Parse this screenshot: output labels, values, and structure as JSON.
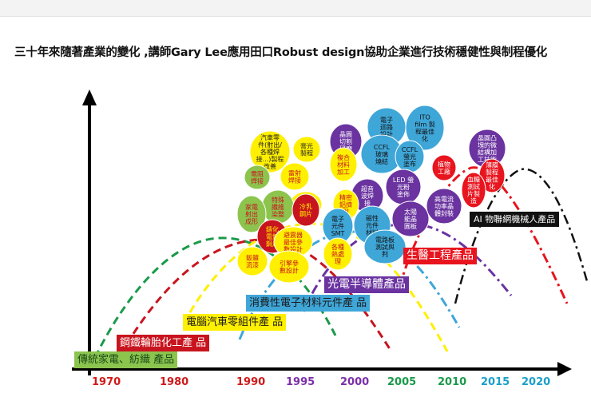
{
  "title": "三十年來隨著產業的變化 ,講師Gary Lee應用田口Robust design協助企業進行技術穩健性與制程優化",
  "years": [
    {
      "label": "1970",
      "color": "#d01a1a"
    },
    {
      "label": "1980",
      "color": "#d01a1a"
    },
    {
      "label": "1990",
      "color": "#d01a1a"
    },
    {
      "label": "1995",
      "color": "#7b2fa8"
    },
    {
      "label": "2000",
      "color": "#7b2fa8"
    },
    {
      "label": "2005",
      "color": "#1a9a4a"
    },
    {
      "label": "2010",
      "color": "#1a9a4a"
    },
    {
      "label": "2015",
      "color": "#1aa0c8"
    },
    {
      "label": "2020",
      "color": "#1aa0c8"
    }
  ],
  "industries": [
    {
      "label": "傳統家電、紡織 產品",
      "bg": "#8cc44e",
      "fg": "#1a4a1a"
    },
    {
      "label": "鋼鐵輪胎化工產 品",
      "bg": "#c8141e",
      "fg": "#ffffff"
    },
    {
      "label": "電腦汽車零組件產 品",
      "bg": "#ffef00",
      "fg": "#1a1a1a"
    },
    {
      "label": "消費性電子材料元件產 品",
      "bg": "#3fa6d8",
      "fg": "#1a1a1a"
    },
    {
      "label": "光電半導體產品",
      "bg": "#6a33a0",
      "fg": "#ffffff"
    },
    {
      "label": "生醫工程產品",
      "bg": "#e8141e",
      "fg": "#ffffff"
    },
    {
      "label": "AI 物聯網機械人產品",
      "bg": "#111111",
      "fg": "#ffffff"
    }
  ],
  "bubbles": [
    {
      "lines": [
        "汽車零",
        "件(射出/",
        "各種焊",
        "接...)製程",
        "改善"
      ],
      "fill": "#ffef00",
      "color": "#222"
    },
    {
      "lines": [
        "膏光",
        "製程"
      ],
      "fill": "#ffef00",
      "color": "#222"
    },
    {
      "lines": [
        "晶圓",
        "切割",
        "研磨"
      ],
      "fill": "#6a33a0",
      "color": "#fff"
    },
    {
      "lines": [
        "電子",
        "迴路",
        "設計"
      ],
      "fill": "#3fa6d8",
      "color": "#111"
    },
    {
      "lines": [
        "ITO",
        "film 製",
        "程最佳",
        "化"
      ],
      "fill": "#3fa6d8",
      "color": "#111"
    },
    {
      "lines": [
        "晶圓凸",
        "塊的微",
        "結構加",
        "工技術"
      ],
      "fill": "#6a33a0",
      "color": "#fff"
    },
    {
      "lines": [
        "電阻",
        "焊接"
      ],
      "fill": "#8cc44e",
      "color": "#c8141e"
    },
    {
      "lines": [
        "雷射",
        "焊接"
      ],
      "fill": "#ffef00",
      "color": "#c8141e"
    },
    {
      "lines": [
        "複合",
        "材料",
        "加工"
      ],
      "fill": "#ffef00",
      "color": "#c8141e"
    },
    {
      "lines": [
        "CCFL",
        "玻璃",
        "燒結"
      ],
      "fill": "#3fa6d8",
      "color": "#111"
    },
    {
      "lines": [
        "CCFL",
        "螢光",
        "塗布"
      ],
      "fill": "#3fa6d8",
      "color": "#111"
    },
    {
      "lines": [
        "植物",
        "工廠"
      ],
      "fill": "#e8141e",
      "color": "#fff"
    },
    {
      "lines": [
        "薄膜",
        "製程",
        "最佳",
        "化"
      ],
      "fill": "#e8141e",
      "color": "#fff"
    },
    {
      "lines": [
        "精密",
        "鑄造"
      ],
      "fill": "#ffef00",
      "color": "#c8141e"
    },
    {
      "lines": [
        "超音",
        "波焊",
        "接"
      ],
      "fill": "#6a33a0",
      "color": "#fff"
    },
    {
      "lines": [
        "LED 螢",
        "光粉",
        "塗佈"
      ],
      "fill": "#6a33a0",
      "color": "#fff"
    },
    {
      "lines": [
        "血糖",
        "測試",
        "片製",
        "造"
      ],
      "fill": "#e8141e",
      "color": "#fff"
    },
    {
      "lines": [
        "特殊",
        "纖維",
        "染整"
      ],
      "fill": "#8cc44e",
      "color": "#c8141e"
    },
    {
      "lines": [
        "家電",
        "射出",
        "成形"
      ],
      "fill": "#8cc44e",
      "color": "#c8141e"
    },
    {
      "lines": [
        "冷乳",
        "鋼片"
      ],
      "fill": "#c8141e",
      "color": "#ffef00"
    },
    {
      "lines": [
        "精密",
        "鋁擠",
        "型"
      ],
      "fill": "#ffef00",
      "color": "#c8141e"
    },
    {
      "lines": [
        "電子",
        "元件",
        "SMT"
      ],
      "fill": "#3fa6d8",
      "color": "#111"
    },
    {
      "lines": [
        "磁性",
        "元件",
        "材料"
      ],
      "fill": "#3fa6d8",
      "color": "#111"
    },
    {
      "lines": [
        "太陽",
        "能晶",
        "圓板"
      ],
      "fill": "#6a33a0",
      "color": "#fff"
    },
    {
      "lines": [
        "高電流",
        "功率晶",
        "體封裝"
      ],
      "fill": "#6a33a0",
      "color": "#fff"
    },
    {
      "lines": [
        "鑄化",
        "電鍍",
        "鋼片"
      ],
      "fill": "#c8141e",
      "color": "#ffef00"
    },
    {
      "lines": [
        "避震器",
        "最佳參",
        "數設計"
      ],
      "fill": "#ffef00",
      "color": "#c8141e"
    },
    {
      "lines": [
        "各種",
        "熱處",
        "理"
      ],
      "fill": "#ffef00",
      "color": "#c8141e"
    },
    {
      "lines": [
        "電路板",
        "測試與",
        "判"
      ],
      "fill": "#3fa6d8",
      "color": "#111"
    },
    {
      "lines": [
        "鈑鍍",
        "流漆"
      ],
      "fill": "#ffef00",
      "color": "#c8141e"
    },
    {
      "lines": [
        "引擎參",
        "數設計"
      ],
      "fill": "#ffef00",
      "color": "#c8141e"
    }
  ],
  "curve_colors": [
    "#1a9a4a",
    "#c8141e",
    "#ffef00",
    "#3fa6d8",
    "#6a33a0",
    "#e8141e",
    "#111111"
  ]
}
